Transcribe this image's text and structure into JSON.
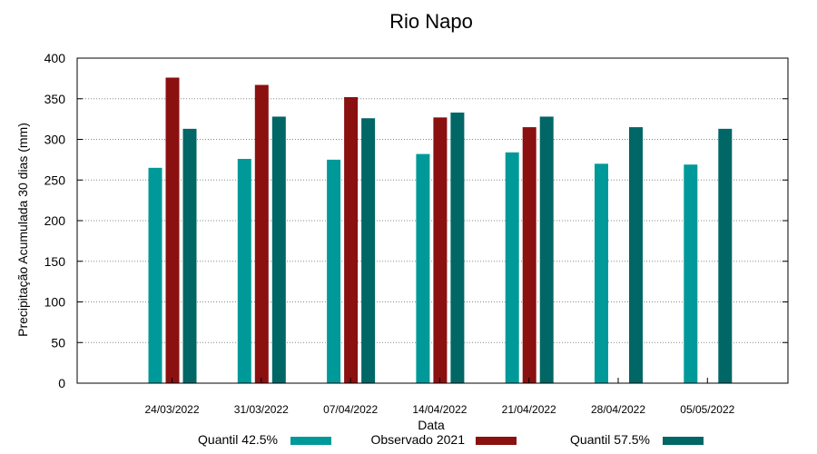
{
  "chart_data": {
    "type": "bar",
    "title": "Rio Napo",
    "xlabel": "Data",
    "ylabel": "Precipitação Acumulada 30 dias (mm)",
    "ylim": [
      0,
      400
    ],
    "yticks": [
      0,
      50,
      100,
      150,
      200,
      250,
      300,
      350,
      400
    ],
    "grid": true,
    "legend_position": "bottom",
    "categories": [
      "24/03/2022",
      "31/03/2022",
      "07/04/2022",
      "14/04/2022",
      "21/04/2022",
      "28/04/2022",
      "05/05/2022"
    ],
    "series": [
      {
        "name": "Quantil 42.5%",
        "color": "#009999",
        "values": [
          265,
          276,
          275,
          282,
          284,
          270,
          269
        ]
      },
      {
        "name": "Observado 2021",
        "color": "#8b1010",
        "values": [
          376,
          367,
          352,
          327,
          315,
          null,
          null
        ]
      },
      {
        "name": "Quantil 57.5%",
        "color": "#006666",
        "values": [
          313,
          328,
          326,
          333,
          328,
          315,
          313
        ]
      }
    ]
  }
}
